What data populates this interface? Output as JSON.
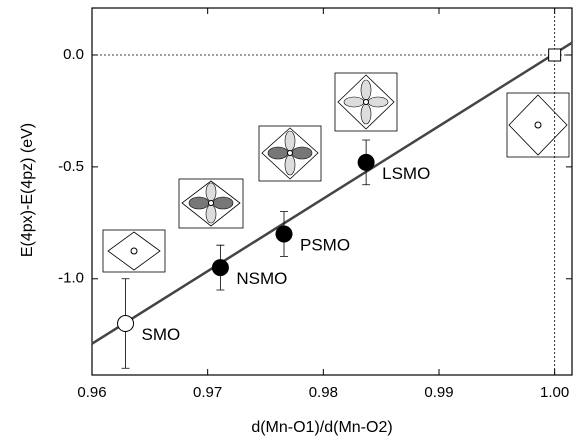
{
  "chart_data": {
    "type": "scatter",
    "xlabel": "d(Mn-O1)/d(Mn-O2)",
    "ylabel": "E(4px)-E(4pz)  (eV)",
    "xlim": [
      0.96,
      1.0015
    ],
    "ylim": [
      -1.43,
      0.21
    ],
    "xticks": [
      0.96,
      0.97,
      0.98,
      0.99,
      {
        "value": 1,
        "label": "1.00"
      }
    ],
    "yticks": [
      {
        "value": 0,
        "label": "0.0"
      },
      -0.5,
      {
        "value": -1,
        "label": "-1.0"
      }
    ],
    "hline": 0,
    "vline": 1,
    "fit": {
      "x": [
        0.96,
        1.0015
      ],
      "y": [
        -1.29,
        0.055
      ],
      "color": "#444444"
    },
    "points": [
      {
        "label": "SMO",
        "x": 0.9629,
        "y": -1.2,
        "err": 0.2,
        "marker": "open-circle"
      },
      {
        "label": "NSMO",
        "x": 0.9711,
        "y": -0.95,
        "err": 0.1,
        "marker": "filled-circle"
      },
      {
        "label": "PSMO",
        "x": 0.9766,
        "y": -0.8,
        "err": 0.1,
        "marker": "filled-circle"
      },
      {
        "label": "LSMO",
        "x": 0.9837,
        "y": -0.48,
        "err": 0.1,
        "marker": "filled-circle"
      },
      {
        "x": 1,
        "y": 0,
        "marker": "open-square"
      }
    ]
  }
}
